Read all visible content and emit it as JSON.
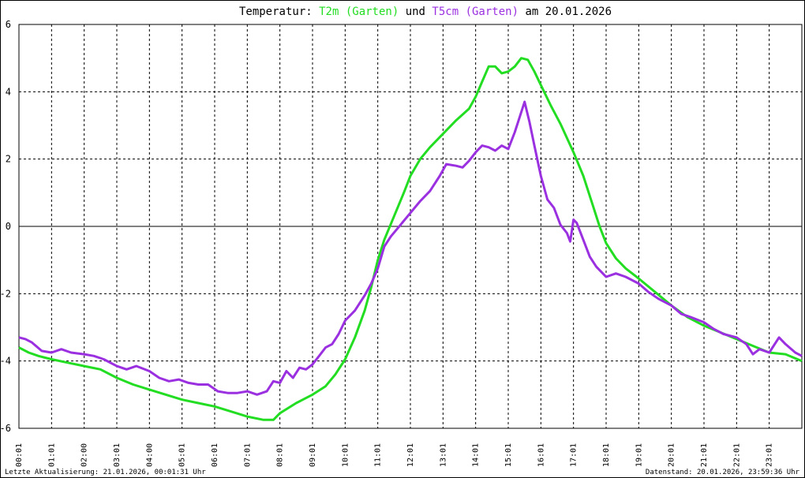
{
  "chart_data": {
    "type": "line",
    "title": {
      "prefix": "Temperatur:",
      "series1": "T2m (Garten)",
      "mid": "und",
      "series2": "T5cm (Garten)",
      "suffix": "am 20.01.2026"
    },
    "footer_left": "Letzte Aktualisierung: 21.01.2026, 00:01:31 Uhr",
    "footer_right": "Datenstand: 20.01.2026, 23:59:36 Uhr",
    "x_tick_labels": [
      "00:01",
      "01:01",
      "02:00",
      "03:01",
      "04:00",
      "05:01",
      "06:01",
      "07:01",
      "08:01",
      "09:01",
      "10:01",
      "11:01",
      "12:01",
      "13:01",
      "14:01",
      "15:01",
      "16:01",
      "17:01",
      "18:01",
      "19:01",
      "20:01",
      "21:01",
      "22:01",
      "23:01"
    ],
    "x_range_hours": [
      0,
      24
    ],
    "y_ticks": [
      -6,
      -4,
      -2,
      0,
      2,
      4,
      6
    ],
    "ylim": [
      -6,
      6
    ],
    "grid": true,
    "series": [
      {
        "name": "T2m (Garten)",
        "color": "#22dd22",
        "points": [
          [
            0.0,
            -3.6
          ],
          [
            0.3,
            -3.75
          ],
          [
            0.6,
            -3.85
          ],
          [
            1.0,
            -3.95
          ],
          [
            1.5,
            -4.05
          ],
          [
            2.0,
            -4.15
          ],
          [
            2.5,
            -4.25
          ],
          [
            3.0,
            -4.5
          ],
          [
            3.5,
            -4.7
          ],
          [
            4.0,
            -4.85
          ],
          [
            4.5,
            -5.0
          ],
          [
            5.0,
            -5.15
          ],
          [
            5.5,
            -5.25
          ],
          [
            6.0,
            -5.35
          ],
          [
            6.5,
            -5.5
          ],
          [
            7.0,
            -5.65
          ],
          [
            7.5,
            -5.75
          ],
          [
            7.8,
            -5.75
          ],
          [
            8.0,
            -5.55
          ],
          [
            8.5,
            -5.25
          ],
          [
            9.0,
            -5.0
          ],
          [
            9.4,
            -4.75
          ],
          [
            9.7,
            -4.4
          ],
          [
            10.0,
            -3.95
          ],
          [
            10.3,
            -3.3
          ],
          [
            10.6,
            -2.5
          ],
          [
            10.8,
            -1.8
          ],
          [
            11.0,
            -1.0
          ],
          [
            11.2,
            -0.4
          ],
          [
            11.5,
            0.3
          ],
          [
            11.8,
            1.0
          ],
          [
            12.0,
            1.5
          ],
          [
            12.3,
            2.0
          ],
          [
            12.6,
            2.35
          ],
          [
            13.0,
            2.75
          ],
          [
            13.4,
            3.15
          ],
          [
            13.8,
            3.5
          ],
          [
            14.0,
            3.85
          ],
          [
            14.2,
            4.3
          ],
          [
            14.4,
            4.75
          ],
          [
            14.6,
            4.75
          ],
          [
            14.8,
            4.55
          ],
          [
            15.0,
            4.6
          ],
          [
            15.2,
            4.75
          ],
          [
            15.4,
            5.0
          ],
          [
            15.6,
            4.95
          ],
          [
            15.8,
            4.6
          ],
          [
            16.0,
            4.2
          ],
          [
            16.3,
            3.6
          ],
          [
            16.6,
            3.05
          ],
          [
            17.0,
            2.2
          ],
          [
            17.3,
            1.5
          ],
          [
            17.6,
            0.6
          ],
          [
            17.8,
            0.0
          ],
          [
            18.0,
            -0.5
          ],
          [
            18.3,
            -0.95
          ],
          [
            18.6,
            -1.25
          ],
          [
            19.0,
            -1.55
          ],
          [
            19.5,
            -1.95
          ],
          [
            20.0,
            -2.35
          ],
          [
            20.5,
            -2.7
          ],
          [
            21.0,
            -2.95
          ],
          [
            21.5,
            -3.15
          ],
          [
            22.0,
            -3.35
          ],
          [
            22.5,
            -3.55
          ],
          [
            23.0,
            -3.75
          ],
          [
            23.5,
            -3.8
          ],
          [
            24.0,
            -4.0
          ]
        ]
      },
      {
        "name": "T5cm (Garten)",
        "color": "#9a30e0",
        "points": [
          [
            0.0,
            -3.3
          ],
          [
            0.2,
            -3.35
          ],
          [
            0.4,
            -3.45
          ],
          [
            0.7,
            -3.7
          ],
          [
            1.0,
            -3.75
          ],
          [
            1.3,
            -3.65
          ],
          [
            1.6,
            -3.75
          ],
          [
            2.0,
            -3.8
          ],
          [
            2.3,
            -3.85
          ],
          [
            2.6,
            -3.95
          ],
          [
            3.0,
            -4.15
          ],
          [
            3.3,
            -4.25
          ],
          [
            3.6,
            -4.15
          ],
          [
            4.0,
            -4.3
          ],
          [
            4.3,
            -4.5
          ],
          [
            4.6,
            -4.6
          ],
          [
            4.9,
            -4.55
          ],
          [
            5.2,
            -4.65
          ],
          [
            5.5,
            -4.7
          ],
          [
            5.8,
            -4.7
          ],
          [
            6.1,
            -4.9
          ],
          [
            6.4,
            -4.95
          ],
          [
            6.7,
            -4.95
          ],
          [
            7.0,
            -4.9
          ],
          [
            7.3,
            -5.0
          ],
          [
            7.6,
            -4.9
          ],
          [
            7.8,
            -4.6
          ],
          [
            8.0,
            -4.65
          ],
          [
            8.2,
            -4.3
          ],
          [
            8.4,
            -4.5
          ],
          [
            8.6,
            -4.2
          ],
          [
            8.8,
            -4.25
          ],
          [
            9.0,
            -4.1
          ],
          [
            9.2,
            -3.85
          ],
          [
            9.4,
            -3.6
          ],
          [
            9.6,
            -3.5
          ],
          [
            9.8,
            -3.2
          ],
          [
            10.0,
            -2.8
          ],
          [
            10.3,
            -2.5
          ],
          [
            10.6,
            -2.05
          ],
          [
            10.8,
            -1.7
          ],
          [
            11.0,
            -1.25
          ],
          [
            11.2,
            -0.6
          ],
          [
            11.4,
            -0.3
          ],
          [
            11.7,
            0.05
          ],
          [
            12.0,
            0.4
          ],
          [
            12.3,
            0.75
          ],
          [
            12.6,
            1.05
          ],
          [
            12.9,
            1.5
          ],
          [
            13.1,
            1.85
          ],
          [
            13.4,
            1.8
          ],
          [
            13.6,
            1.75
          ],
          [
            13.8,
            1.95
          ],
          [
            14.0,
            2.2
          ],
          [
            14.2,
            2.4
          ],
          [
            14.4,
            2.35
          ],
          [
            14.6,
            2.25
          ],
          [
            14.8,
            2.4
          ],
          [
            15.0,
            2.3
          ],
          [
            15.2,
            2.8
          ],
          [
            15.35,
            3.25
          ],
          [
            15.5,
            3.7
          ],
          [
            15.65,
            3.1
          ],
          [
            15.8,
            2.4
          ],
          [
            16.0,
            1.5
          ],
          [
            16.2,
            0.8
          ],
          [
            16.4,
            0.55
          ],
          [
            16.6,
            0.05
          ],
          [
            16.8,
            -0.2
          ],
          [
            16.9,
            -0.45
          ],
          [
            17.0,
            0.2
          ],
          [
            17.1,
            0.1
          ],
          [
            17.3,
            -0.4
          ],
          [
            17.5,
            -0.9
          ],
          [
            17.7,
            -1.2
          ],
          [
            18.0,
            -1.5
          ],
          [
            18.3,
            -1.4
          ],
          [
            18.6,
            -1.5
          ],
          [
            19.0,
            -1.7
          ],
          [
            19.3,
            -1.95
          ],
          [
            19.6,
            -2.15
          ],
          [
            20.0,
            -2.35
          ],
          [
            20.3,
            -2.6
          ],
          [
            20.6,
            -2.7
          ],
          [
            21.0,
            -2.85
          ],
          [
            21.3,
            -3.05
          ],
          [
            21.6,
            -3.2
          ],
          [
            22.0,
            -3.3
          ],
          [
            22.3,
            -3.5
          ],
          [
            22.5,
            -3.8
          ],
          [
            22.7,
            -3.65
          ],
          [
            23.0,
            -3.75
          ],
          [
            23.3,
            -3.3
          ],
          [
            23.5,
            -3.5
          ],
          [
            23.8,
            -3.75
          ],
          [
            24.0,
            -3.85
          ]
        ]
      }
    ]
  }
}
